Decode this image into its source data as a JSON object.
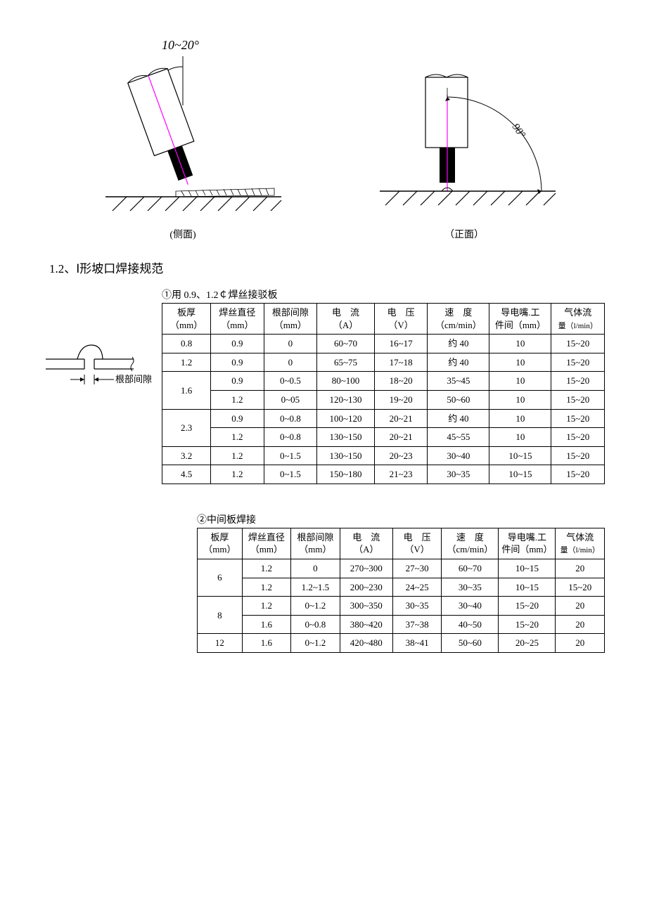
{
  "diagrams": {
    "angle_label": "10~20°",
    "left_caption": "(侧面)",
    "right_caption": "（正面）",
    "right_angle": "90°",
    "joint_gap_label": "根部间隙",
    "colors": {
      "stroke": "#000000",
      "wire": "#ff00ff",
      "bg": "#ffffff"
    }
  },
  "section": {
    "heading": "1.2、Ⅰ形坡口焊接规范"
  },
  "table1": {
    "title": "①用 0.9、1.2￠焊丝接驳板",
    "headers": {
      "c1a": "板厚",
      "c1b": "（mm）",
      "c2a": "焊丝直径",
      "c2b": "（mm）",
      "c3a": "根部间隙",
      "c3b": "（mm）",
      "c4a": "电　流",
      "c4b": "（A）",
      "c5a": "电　压",
      "c5b": "（V）",
      "c6a": "速　度",
      "c6b": "（cm/min）",
      "c7a": "导电嘴.工",
      "c7b": "件间（mm）",
      "c8a": "气体流",
      "c8b": "量（l/min）"
    },
    "rows": [
      {
        "thick": "0.8",
        "wire": "0.9",
        "gap": "0",
        "cur": "60~70",
        "volt": "16~17",
        "spd": "约 40",
        "dist": "10",
        "gas": "15~20"
      },
      {
        "thick": "1.2",
        "wire": "0.9",
        "gap": "0",
        "cur": "65~75",
        "volt": "17~18",
        "spd": "约 40",
        "dist": "10",
        "gas": "15~20"
      },
      {
        "thick": "1.6",
        "wire": "0.9",
        "gap": "0~0.5",
        "cur": "80~100",
        "volt": "18~20",
        "spd": "35~45",
        "dist": "10",
        "gas": "15~20",
        "rowspan": 2
      },
      {
        "wire": "1.2",
        "gap": "0~05",
        "cur": "120~130",
        "volt": "19~20",
        "spd": "50~60",
        "dist": "10",
        "gas": "15~20"
      },
      {
        "thick": "2.3",
        "wire": "0.9",
        "gap": "0~0.8",
        "cur": "100~120",
        "volt": "20~21",
        "spd": "约 40",
        "dist": "10",
        "gas": "15~20",
        "rowspan": 2
      },
      {
        "wire": "1.2",
        "gap": "0~0.8",
        "cur": "130~150",
        "volt": "20~21",
        "spd": "45~55",
        "dist": "10",
        "gas": "15~20"
      },
      {
        "thick": "3.2",
        "wire": "1.2",
        "gap": "0~1.5",
        "cur": "130~150",
        "volt": "20~23",
        "spd": "30~40",
        "dist": "10~15",
        "gas": "15~20"
      },
      {
        "thick": "4.5",
        "wire": "1.2",
        "gap": "0~1.5",
        "cur": "150~180",
        "volt": "21~23",
        "spd": "30~35",
        "dist": "10~15",
        "gas": "15~20"
      }
    ],
    "col_widths": [
      "11%",
      "12%",
      "12%",
      "13%",
      "12%",
      "14%",
      "14%",
      "12%"
    ]
  },
  "table2": {
    "title": "②中间板焊接",
    "headers": {
      "c1a": "板厚",
      "c1b": "（mm）",
      "c2a": "焊丝直径",
      "c2b": "（mm）",
      "c3a": "根部间隙",
      "c3b": "（mm）",
      "c4a": "电　流",
      "c4b": "（A）",
      "c5a": "电　压",
      "c5b": "（V）",
      "c6a": "速　度",
      "c6b": "（cm/min）",
      "c7a": "导电嘴.工",
      "c7b": "件间（mm）",
      "c8a": "气体流",
      "c8b": "量（l/min）"
    },
    "rows": [
      {
        "thick": "6",
        "wire": "1.2",
        "gap": "0",
        "cur": "270~300",
        "volt": "27~30",
        "spd": "60~70",
        "dist": "10~15",
        "gas": "20",
        "rowspan": 2
      },
      {
        "wire": "1.2",
        "gap": "1.2~1.5",
        "cur": "200~230",
        "volt": "24~25",
        "spd": "30~35",
        "dist": "10~15",
        "gas": "15~20"
      },
      {
        "thick": "8",
        "wire": "1.2",
        "gap": "0~1.2",
        "cur": "300~350",
        "volt": "30~35",
        "spd": "30~40",
        "dist": "15~20",
        "gas": "20",
        "rowspan": 2
      },
      {
        "wire": "1.6",
        "gap": "0~0.8",
        "cur": "380~420",
        "volt": "37~38",
        "spd": "40~50",
        "dist": "15~20",
        "gas": "20"
      },
      {
        "thick": "12",
        "wire": "1.6",
        "gap": "0~1.2",
        "cur": "420~480",
        "volt": "38~41",
        "spd": "50~60",
        "dist": "20~25",
        "gas": "20"
      }
    ],
    "col_widths": [
      "11%",
      "12%",
      "12%",
      "13%",
      "12%",
      "14%",
      "14%",
      "12%"
    ]
  }
}
